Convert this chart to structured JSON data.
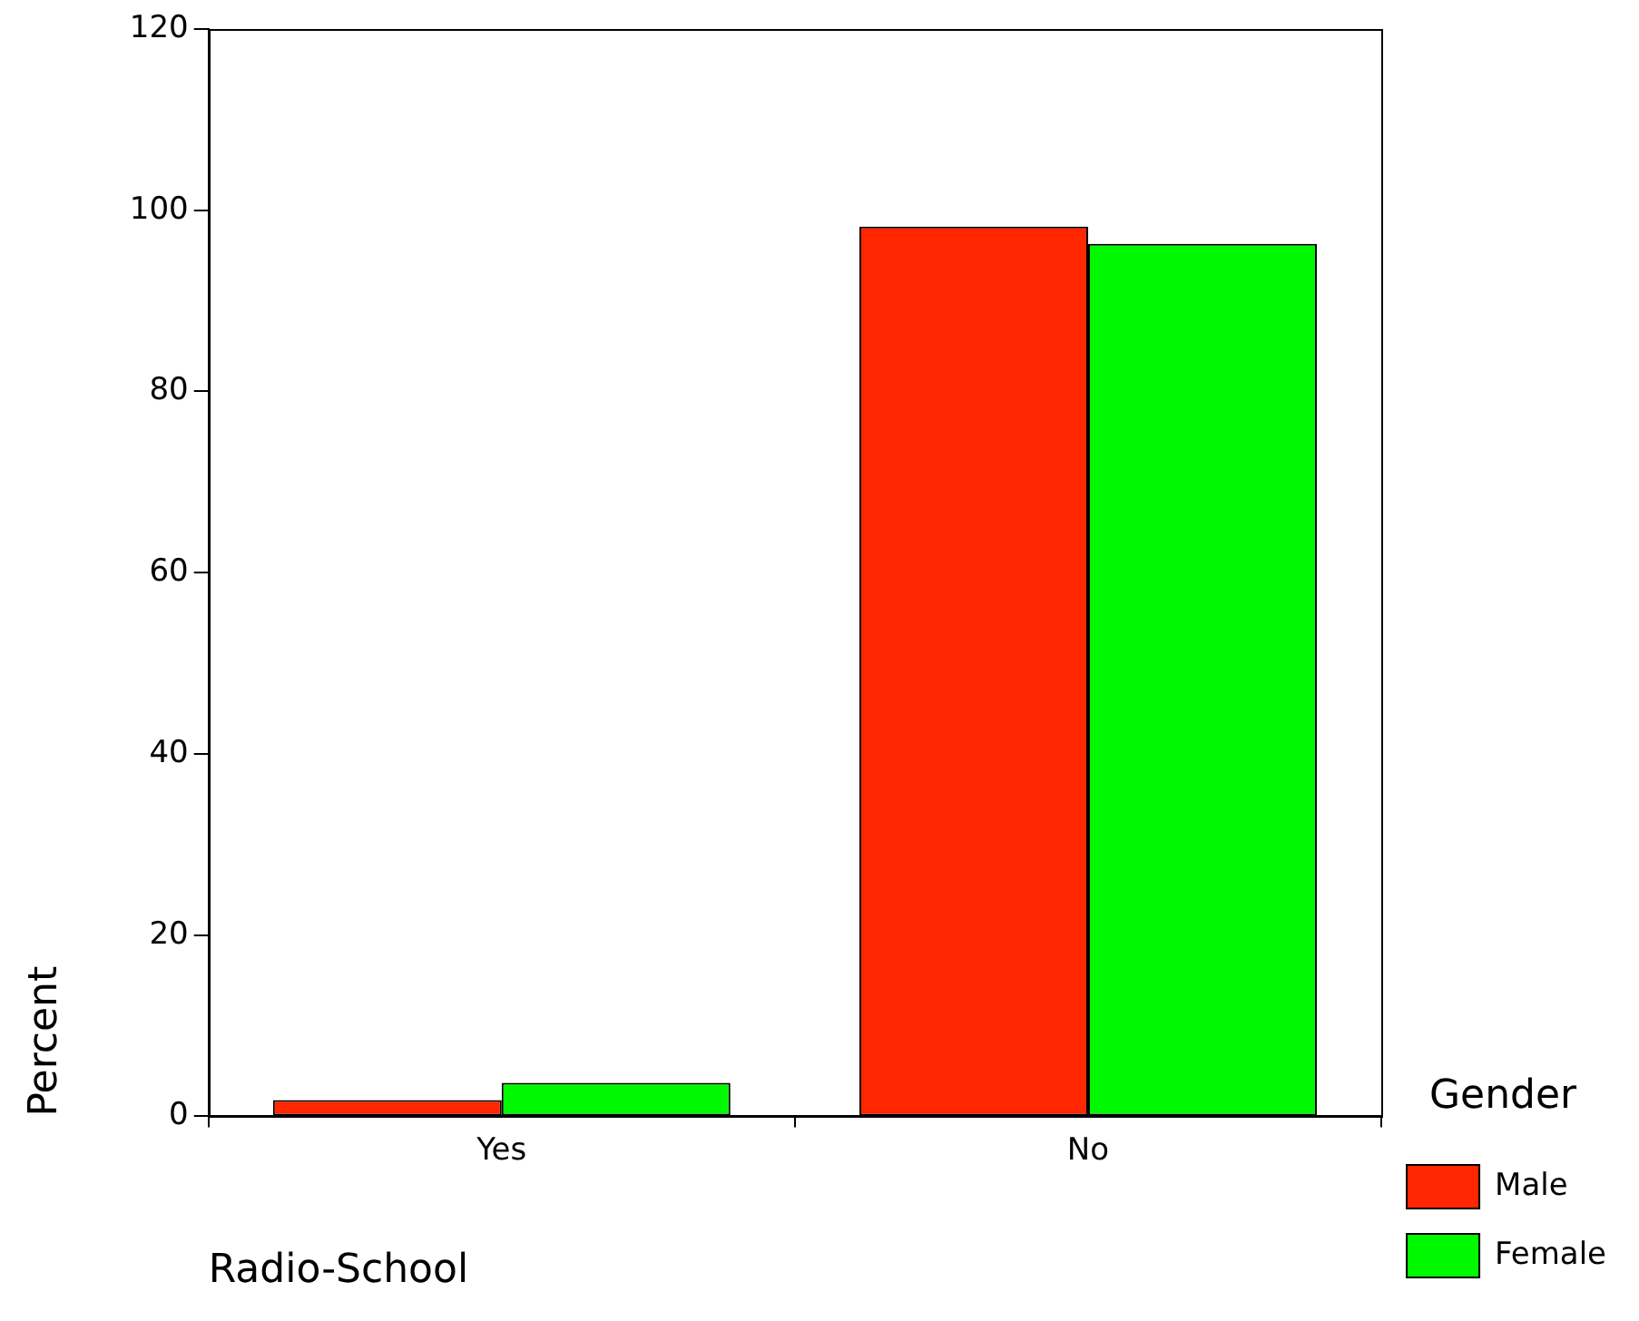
{
  "chart_data": {
    "type": "bar",
    "xlabel": "Radio-School",
    "ylabel": "Percent",
    "legend_title": "Gender",
    "categories": [
      "Yes",
      "No"
    ],
    "series": [
      {
        "name": "Male",
        "color": "#ff2600",
        "values": [
          1.8,
          98.2
        ]
      },
      {
        "name": "Female",
        "color": "#00f900",
        "values": [
          3.7,
          96.3
        ]
      }
    ],
    "ylim": [
      0,
      120
    ],
    "yticks": [
      0,
      20,
      40,
      60,
      80,
      100,
      120
    ],
    "grid": false,
    "legend": "right"
  }
}
